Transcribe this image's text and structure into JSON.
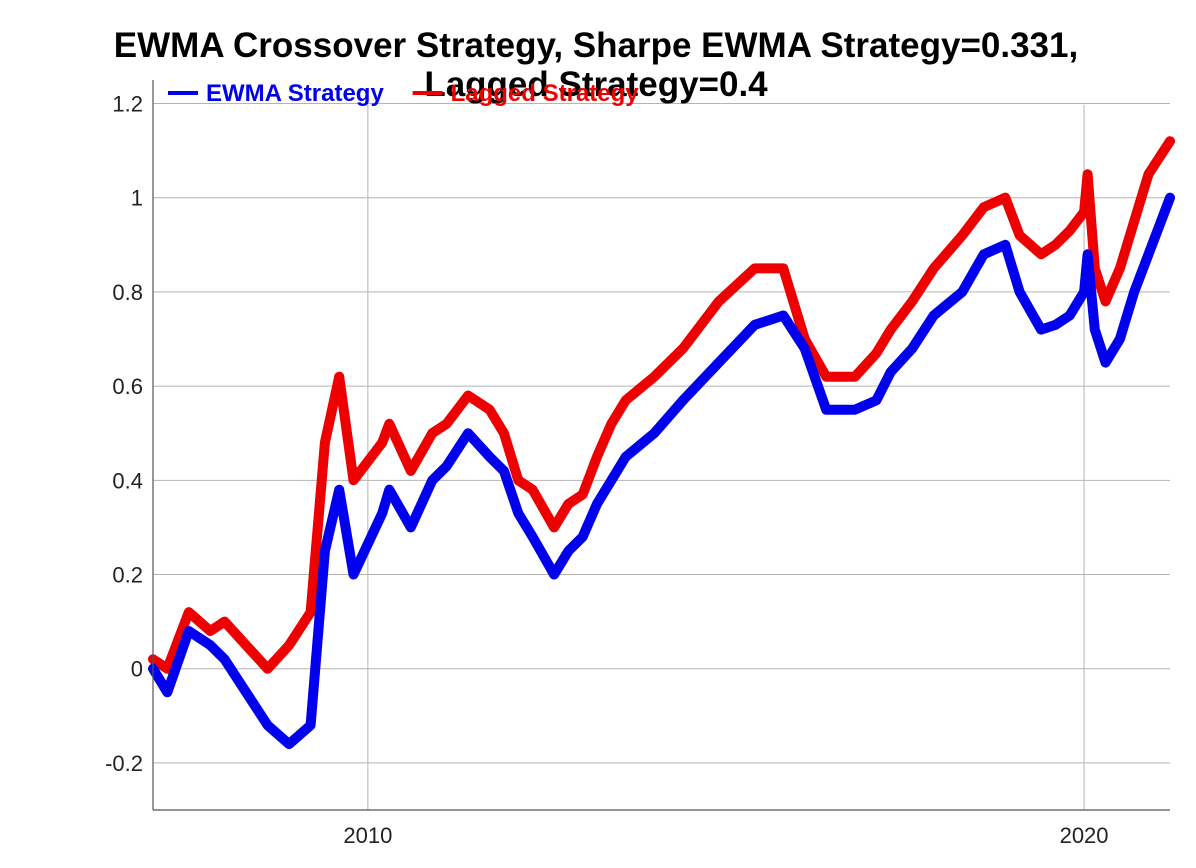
{
  "chart_data": {
    "type": "line",
    "title": "EWMA Crossover Strategy, Sharpe EWMA Strategy=0.331,",
    "title_line2": "Lagged Strategy=0.4",
    "xlabel": "",
    "ylabel": "",
    "xlim": [
      2007.0,
      2021.2
    ],
    "ylim": [
      -0.3,
      1.25
    ],
    "grid": true,
    "legend_position": "top-left",
    "x_ticks": [
      {
        "value": 2010,
        "label": "2010"
      },
      {
        "value": 2020,
        "label": "2020"
      }
    ],
    "y_ticks": [
      {
        "value": 1.2,
        "label": "1.2"
      },
      {
        "value": 1.0,
        "label": "1"
      },
      {
        "value": 0.8,
        "label": "0.8"
      },
      {
        "value": 0.6,
        "label": "0.6"
      },
      {
        "value": 0.4,
        "label": "0.4"
      },
      {
        "value": 0.2,
        "label": "0.2"
      },
      {
        "value": 0.0,
        "label": "0"
      },
      {
        "value": -0.2,
        "label": "-0.2"
      }
    ],
    "series": [
      {
        "name": "EWMA Strategy",
        "color": "#0000ee",
        "x": [
          2007.0,
          2007.2,
          2007.5,
          2007.8,
          2008.0,
          2008.3,
          2008.6,
          2008.9,
          2009.2,
          2009.4,
          2009.6,
          2009.8,
          2010.2,
          2010.3,
          2010.6,
          2010.9,
          2011.1,
          2011.4,
          2011.7,
          2011.9,
          2012.1,
          2012.3,
          2012.6,
          2012.8,
          2013.0,
          2013.2,
          2013.4,
          2013.6,
          2014.0,
          2014.4,
          2014.9,
          2015.4,
          2015.8,
          2016.1,
          2016.4,
          2016.8,
          2017.1,
          2017.3,
          2017.6,
          2017.9,
          2018.3,
          2018.6,
          2018.9,
          2019.1,
          2019.4,
          2019.6,
          2019.8,
          2020.0,
          2020.05,
          2020.15,
          2020.3,
          2020.5,
          2020.7,
          2020.9,
          2021.2
        ],
        "values": [
          0.0,
          -0.05,
          0.08,
          0.05,
          0.02,
          -0.05,
          -0.12,
          -0.16,
          -0.12,
          0.25,
          0.38,
          0.2,
          0.33,
          0.38,
          0.3,
          0.4,
          0.43,
          0.5,
          0.45,
          0.42,
          0.33,
          0.28,
          0.2,
          0.25,
          0.28,
          0.35,
          0.4,
          0.45,
          0.5,
          0.57,
          0.65,
          0.73,
          0.75,
          0.68,
          0.55,
          0.55,
          0.57,
          0.63,
          0.68,
          0.75,
          0.8,
          0.88,
          0.9,
          0.8,
          0.72,
          0.73,
          0.75,
          0.8,
          0.88,
          0.72,
          0.65,
          0.7,
          0.8,
          0.88,
          1.0
        ]
      },
      {
        "name": "Lagged Strategy",
        "color": "#ee0000",
        "x": [
          2007.0,
          2007.2,
          2007.5,
          2007.8,
          2008.0,
          2008.3,
          2008.6,
          2008.9,
          2009.2,
          2009.4,
          2009.6,
          2009.8,
          2010.2,
          2010.3,
          2010.6,
          2010.9,
          2011.1,
          2011.4,
          2011.7,
          2011.9,
          2012.1,
          2012.3,
          2012.6,
          2012.8,
          2013.0,
          2013.2,
          2013.4,
          2013.6,
          2014.0,
          2014.4,
          2014.9,
          2015.4,
          2015.8,
          2016.1,
          2016.4,
          2016.8,
          2017.1,
          2017.3,
          2017.6,
          2017.9,
          2018.3,
          2018.6,
          2018.9,
          2019.1,
          2019.4,
          2019.6,
          2019.8,
          2020.0,
          2020.05,
          2020.15,
          2020.3,
          2020.5,
          2020.7,
          2020.9,
          2021.2
        ],
        "values": [
          0.02,
          0.0,
          0.12,
          0.08,
          0.1,
          0.05,
          0.0,
          0.05,
          0.12,
          0.48,
          0.62,
          0.4,
          0.48,
          0.52,
          0.42,
          0.5,
          0.52,
          0.58,
          0.55,
          0.5,
          0.4,
          0.38,
          0.3,
          0.35,
          0.37,
          0.45,
          0.52,
          0.57,
          0.62,
          0.68,
          0.78,
          0.85,
          0.85,
          0.7,
          0.62,
          0.62,
          0.67,
          0.72,
          0.78,
          0.85,
          0.92,
          0.98,
          1.0,
          0.92,
          0.88,
          0.9,
          0.93,
          0.97,
          1.05,
          0.85,
          0.78,
          0.85,
          0.95,
          1.05,
          1.12
        ]
      }
    ]
  }
}
